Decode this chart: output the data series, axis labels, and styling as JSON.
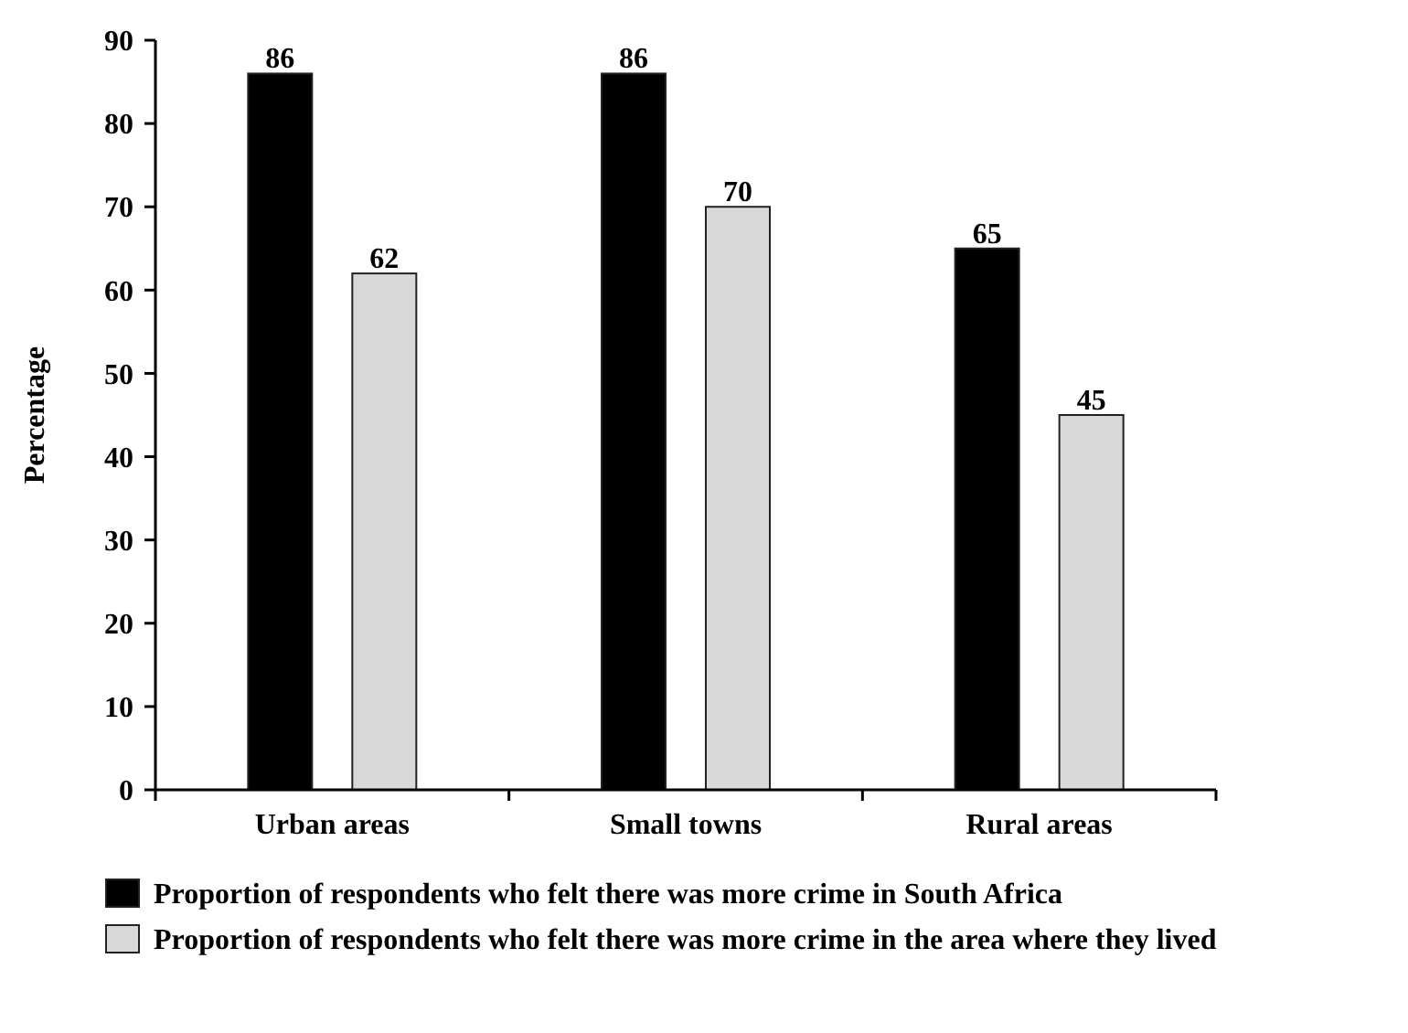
{
  "chart_data": {
    "type": "bar",
    "ylabel": "Percentage",
    "categories": [
      "Urban areas",
      "Small towns",
      "Rural areas"
    ],
    "series": [
      {
        "name": "Proportion of respondents who felt there was more crime in South Africa",
        "color": "#000000",
        "values": [
          86,
          86,
          65
        ]
      },
      {
        "name": "Proportion of respondents who felt there was more crime in the area where they lived",
        "color": "#d9d9d9",
        "values": [
          62,
          70,
          45
        ]
      }
    ],
    "ylim": [
      0,
      90
    ],
    "yticks": [
      0,
      10,
      20,
      30,
      40,
      50,
      60,
      70,
      80,
      90
    ],
    "data_labels": true,
    "legend": "bottom",
    "grid": false
  }
}
